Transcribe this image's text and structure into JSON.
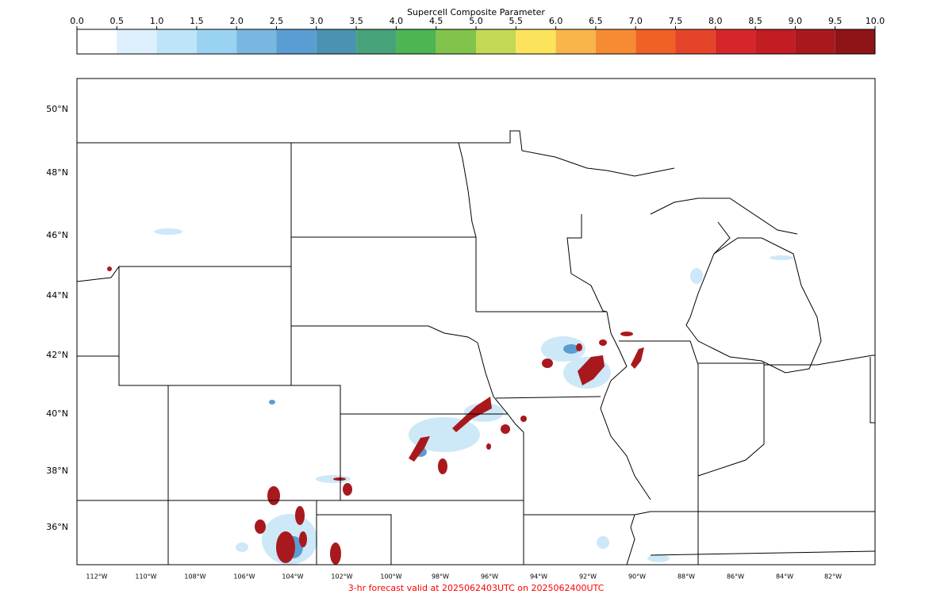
{
  "colorbar": {
    "title": "Supercell Composite Parameter",
    "ticks": [
      {
        "value": 0,
        "label": "0.0"
      },
      {
        "value": 0.5,
        "label": "0.5"
      },
      {
        "value": 1,
        "label": "1.0"
      },
      {
        "value": 1.5,
        "label": "1.5"
      },
      {
        "value": 2,
        "label": "2.0"
      },
      {
        "value": 2.5,
        "label": "2.5"
      },
      {
        "value": 3,
        "label": "3.0"
      },
      {
        "value": 3.5,
        "label": "3.5"
      },
      {
        "value": 4,
        "label": "4.0"
      },
      {
        "value": 4.5,
        "label": "4.5"
      },
      {
        "value": 5,
        "label": "5.0"
      },
      {
        "value": 5.5,
        "label": "5.5"
      },
      {
        "value": 6,
        "label": "6.0"
      },
      {
        "value": 6.5,
        "label": "6.5"
      },
      {
        "value": 7,
        "label": "7.0"
      },
      {
        "value": 7.5,
        "label": "7.5"
      },
      {
        "value": 8,
        "label": "8.0"
      },
      {
        "value": 8.5,
        "label": "8.5"
      },
      {
        "value": 9,
        "label": "9.0"
      },
      {
        "value": 9.5,
        "label": "9.5"
      },
      {
        "value": 10,
        "label": "10.0"
      }
    ],
    "colors": [
      "#ffffff",
      "#ddf0fb",
      "#bde4f7",
      "#9ad3f1",
      "#78b7e0",
      "#5a9dd3",
      "#4a93b0",
      "#47a27a",
      "#4db552",
      "#82c44b",
      "#c3d955",
      "#fbe45c",
      "#f8b549",
      "#f58c33",
      "#ef6127",
      "#e4452a",
      "#d6262a",
      "#c11d22",
      "#a8191d",
      "#8e1418"
    ]
  },
  "map": {
    "lat_labels": [
      "50°N",
      "48°N",
      "46°N",
      "44°N",
      "42°N",
      "40°N",
      "38°N",
      "36°N"
    ],
    "lon_labels": [
      "112°W",
      "110°W",
      "108°W",
      "106°W",
      "104°W",
      "102°W",
      "100°W",
      "98°W",
      "96°W",
      "94°W",
      "92°W",
      "90°W",
      "88°W",
      "86°W",
      "84°W",
      "82°W"
    ]
  },
  "footer": "3-hr forecast valid at 2025062403UTC on 2025062400UTC"
}
